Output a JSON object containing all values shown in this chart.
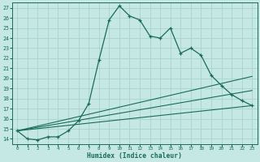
{
  "title": "",
  "xlabel": "Humidex (Indice chaleur)",
  "ylabel": "",
  "bg_color": "#c5e8e4",
  "line_color": "#1a6b5a",
  "grid_color": "#a8d4ce",
  "xlim": [
    -0.5,
    23.5
  ],
  "ylim": [
    13.5,
    27.5
  ],
  "yticks": [
    14,
    15,
    16,
    17,
    18,
    19,
    20,
    21,
    22,
    23,
    24,
    25,
    26,
    27
  ],
  "xticks": [
    0,
    1,
    2,
    3,
    4,
    5,
    6,
    7,
    8,
    9,
    10,
    11,
    12,
    13,
    14,
    15,
    16,
    17,
    18,
    19,
    20,
    21,
    22,
    23
  ],
  "main_line": {
    "x": [
      0,
      1,
      2,
      3,
      4,
      5,
      6,
      7,
      8,
      9,
      10,
      11,
      12,
      13,
      14,
      15,
      16,
      17,
      18,
      19,
      20,
      21,
      22,
      23
    ],
    "y": [
      14.8,
      14.0,
      13.9,
      14.2,
      14.2,
      14.8,
      15.8,
      17.5,
      21.8,
      25.8,
      27.2,
      26.2,
      25.8,
      24.2,
      24.0,
      25.0,
      22.5,
      23.0,
      22.3,
      20.3,
      19.3,
      18.4,
      17.8,
      17.3
    ]
  },
  "straight_lines": [
    {
      "x": [
        0,
        23
      ],
      "y": [
        14.8,
        17.3
      ]
    },
    {
      "x": [
        0,
        23
      ],
      "y": [
        14.8,
        18.8
      ]
    },
    {
      "x": [
        0,
        23
      ],
      "y": [
        14.8,
        20.2
      ]
    }
  ]
}
